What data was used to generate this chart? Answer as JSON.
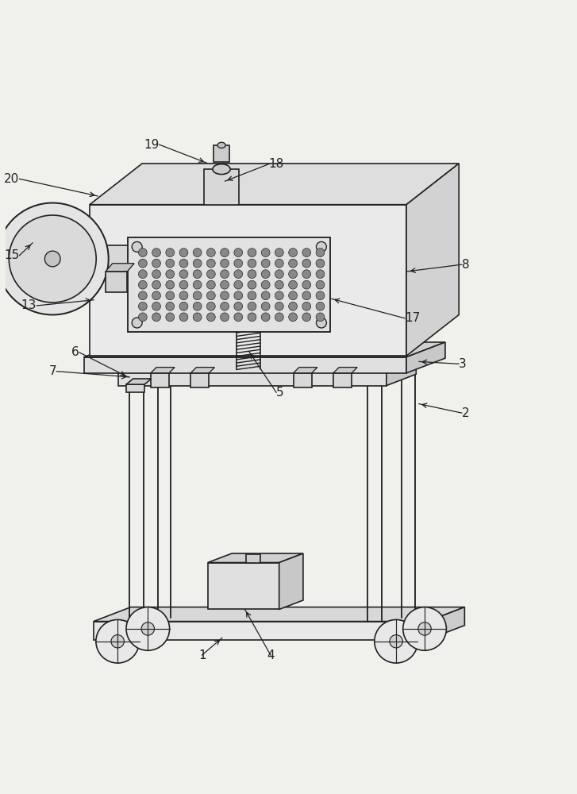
{
  "bg_color": "#f0f0ec",
  "line_color": "#222222",
  "line_width": 1.2,
  "label_fontsize": 11
}
